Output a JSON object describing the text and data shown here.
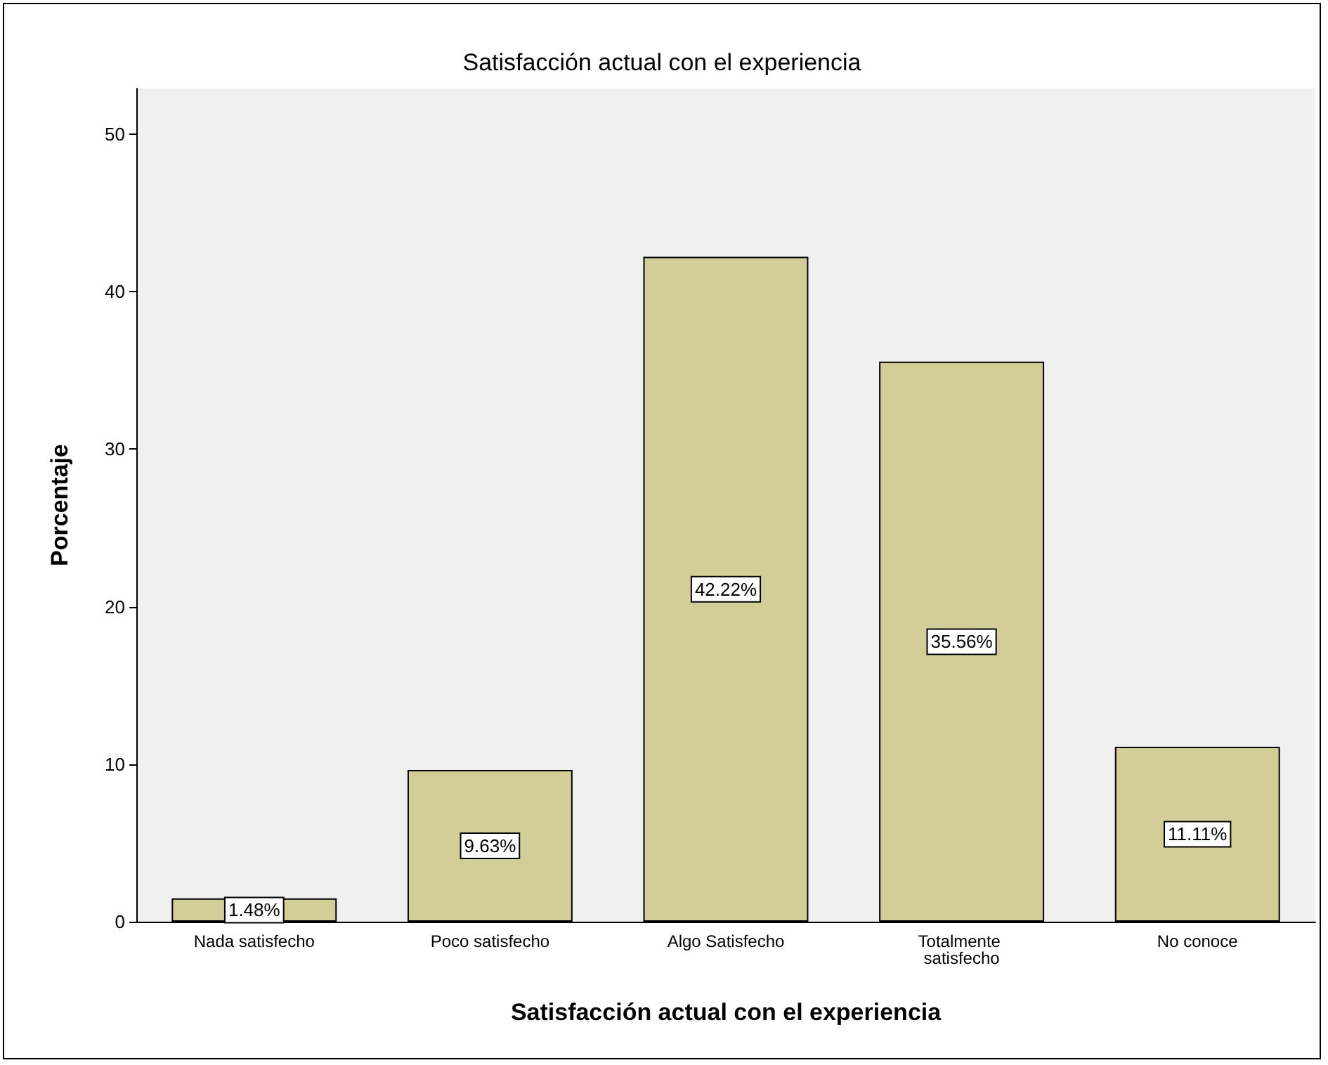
{
  "chart_data": {
    "type": "bar",
    "title": "Satisfacción actual con el experiencia",
    "xlabel": "Satisfacción actual con el experiencia",
    "ylabel": "Porcentaje",
    "categories": [
      "Nada satisfecho",
      "Poco satisfecho",
      "Algo Satisfecho",
      "Totalmente satisfecho",
      "No conoce"
    ],
    "values": [
      1.48,
      9.63,
      42.22,
      35.56,
      11.11
    ],
    "value_labels": [
      "1.48%",
      "9.63%",
      "42.22%",
      "35.56%",
      "11.11%"
    ],
    "color": "#d3ce97",
    "ylim": [
      0,
      52.9
    ],
    "yticks": [
      0,
      10,
      20,
      30,
      40,
      50
    ],
    "grid": false
  }
}
